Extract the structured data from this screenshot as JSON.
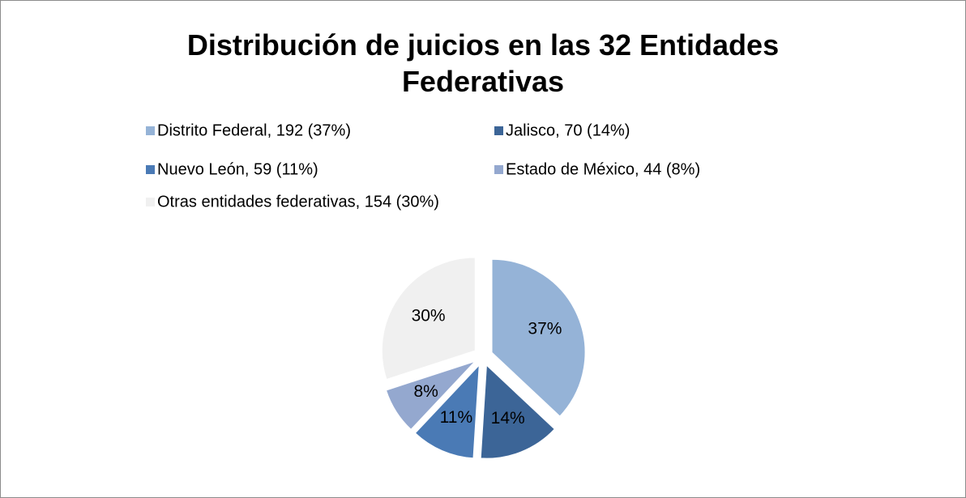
{
  "chart_data": {
    "type": "pie",
    "title": "Distribución de juicios en las 32 Entidades Federativas",
    "categories": [
      "Distrito Federal, 192 (37%)",
      "Jalisco, 70 (14%)",
      "Nuevo León, 59 (11%)",
      "Estado de México, 44 (8%)",
      "Otras entidades federativas, 154 (30%)"
    ],
    "values": [
      37,
      14,
      11,
      8,
      30
    ],
    "value_labels": [
      "37%",
      "14%",
      "11%",
      "8%",
      "30%"
    ],
    "colors": [
      "#95b3d7",
      "#3c6597",
      "#4a7ab5",
      "#94a8cf",
      "#f0f0f0"
    ],
    "legend": "top"
  }
}
